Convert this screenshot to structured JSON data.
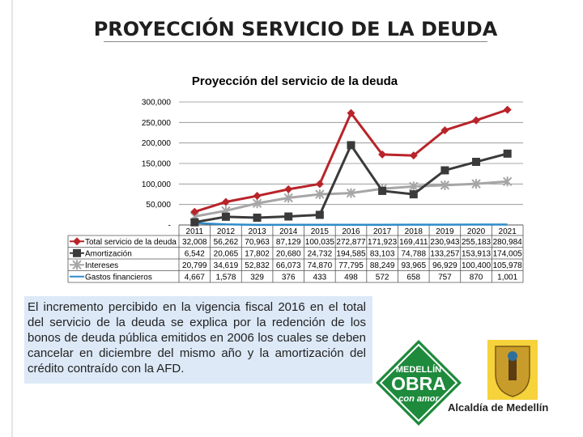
{
  "page": {
    "title": "PROYECCIÓN SERVICIO DE LA DEUDA",
    "note": "El incremento percibido en la vigencia fiscal 2016 en el total del servicio de la deuda se explica por  la redención de los bonos de deuda pública emitidos en 2006 los cuales se deben cancelar en diciembre del mismo año y la amortización del crédito contraído con la AFD.",
    "logo": {
      "line1": "MEDELLÍN",
      "line2": "OBRA",
      "line3": "con amor",
      "org": "Alcaldía de Medellín",
      "badge_color": "#1e8a3c"
    }
  },
  "chart_data": {
    "type": "line",
    "title": "Proyección del servicio de la deuda",
    "categories": [
      "2011",
      "2012",
      "2013",
      "2014",
      "2015",
      "2016",
      "2017",
      "2018",
      "2019",
      "2020",
      "2021"
    ],
    "ylim": [
      0,
      300000
    ],
    "yticks": [
      "300,000",
      "250,000",
      "200,000",
      "150,000",
      "100,000",
      "50,000",
      "-"
    ],
    "ytick_values": [
      300000,
      250000,
      200000,
      150000,
      100000,
      50000,
      0
    ],
    "series": [
      {
        "name": "Total servicio de la deuda",
        "color": "#b8242a",
        "marker": "diamond",
        "values": [
          32008,
          56262,
          70963,
          87129,
          100035,
          272877,
          171923,
          169411,
          230943,
          255183,
          280984
        ],
        "labels": [
          "32,008",
          "56,262",
          "70,963",
          "87,129",
          "100,035",
          "272,877",
          "171,923",
          "169,411",
          "230,943",
          "255,183",
          "280,984"
        ]
      },
      {
        "name": "Amortización",
        "color": "#3a3a3a",
        "marker": "square",
        "values": [
          6542,
          20065,
          17802,
          20680,
          24732,
          194585,
          83103,
          74788,
          133257,
          153913,
          174005
        ],
        "labels": [
          "6,542",
          "20,065",
          "17,802",
          "20,680",
          "24,732",
          "194,585",
          "83,103",
          "74,788",
          "133,257",
          "153,913",
          "174,005"
        ]
      },
      {
        "name": "Intereses",
        "color": "#a6a6a6",
        "marker": "star",
        "values": [
          20799,
          34619,
          52832,
          66073,
          74870,
          77795,
          88249,
          93965,
          96929,
          100400,
          105978
        ],
        "labels": [
          "20,799",
          "34,619",
          "52,832",
          "66,073",
          "74,870",
          "77,795",
          "88,249",
          "93,965",
          "96,929",
          "100,400",
          "105,978"
        ]
      },
      {
        "name": "Gastos financieros",
        "color": "#2e8bc9",
        "marker": "none",
        "values": [
          4667,
          1578,
          329,
          376,
          433,
          498,
          572,
          658,
          757,
          870,
          1001
        ],
        "labels": [
          "4,667",
          "1,578",
          "329",
          "376",
          "433",
          "498",
          "572",
          "658",
          "757",
          "870",
          "1,001"
        ]
      }
    ]
  }
}
